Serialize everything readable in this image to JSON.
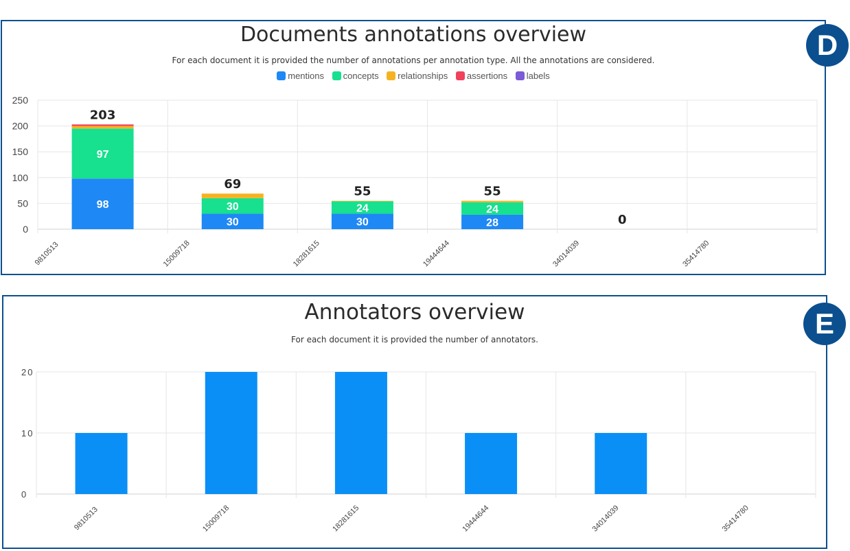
{
  "badges": {
    "d": "D",
    "e": "E"
  },
  "colors": {
    "mentions": "#1e88f5",
    "concepts": "#17e08f",
    "relationships": "#f5b324",
    "assertions": "#f0425a",
    "labels": "#7b5bd6",
    "annotators": "#0a8ff7",
    "frame": "#0b4f8f"
  },
  "chart_data": [
    {
      "type": "bar",
      "stacked": true,
      "title": "Documents annotations overview",
      "subtitle": "For each document it is provided the number of annotations per annotation type. All the annotations are considered.",
      "categories": [
        "9810513",
        "15009718",
        "18281615",
        "19444644",
        "34014039",
        "35414780"
      ],
      "ylim": [
        0,
        250
      ],
      "yticks": [
        0,
        50,
        100,
        150,
        200,
        250
      ],
      "grid": true,
      "legend_position": "top",
      "series": [
        {
          "name": "mentions",
          "values": [
            98,
            30,
            30,
            28,
            0,
            0
          ]
        },
        {
          "name": "concepts",
          "values": [
            97,
            30,
            24,
            24,
            0,
            0
          ]
        },
        {
          "name": "relationships",
          "values": [
            5,
            9,
            1,
            3,
            0,
            0
          ]
        },
        {
          "name": "assertions",
          "values": [
            3,
            0,
            0,
            0,
            0,
            0
          ]
        },
        {
          "name": "labels",
          "values": [
            0,
            0,
            0,
            0,
            0,
            0
          ]
        }
      ],
      "totals": [
        203,
        69,
        55,
        55,
        0,
        0
      ],
      "total_labels": [
        "203",
        "69",
        "55",
        "55",
        "0",
        ""
      ]
    },
    {
      "type": "bar",
      "title": "Annotators overview",
      "subtitle": "For each document it is provided the number of annotators.",
      "categories": [
        "9810513",
        "15009718",
        "18281615",
        "19444644",
        "34014039",
        "35414780"
      ],
      "values": [
        10,
        20,
        20,
        10,
        10,
        0
      ],
      "ylim": [
        0,
        20
      ],
      "yticks": [
        0,
        10,
        20
      ],
      "ytick_labels": [
        "0",
        "10",
        "20"
      ],
      "grid": true
    }
  ]
}
